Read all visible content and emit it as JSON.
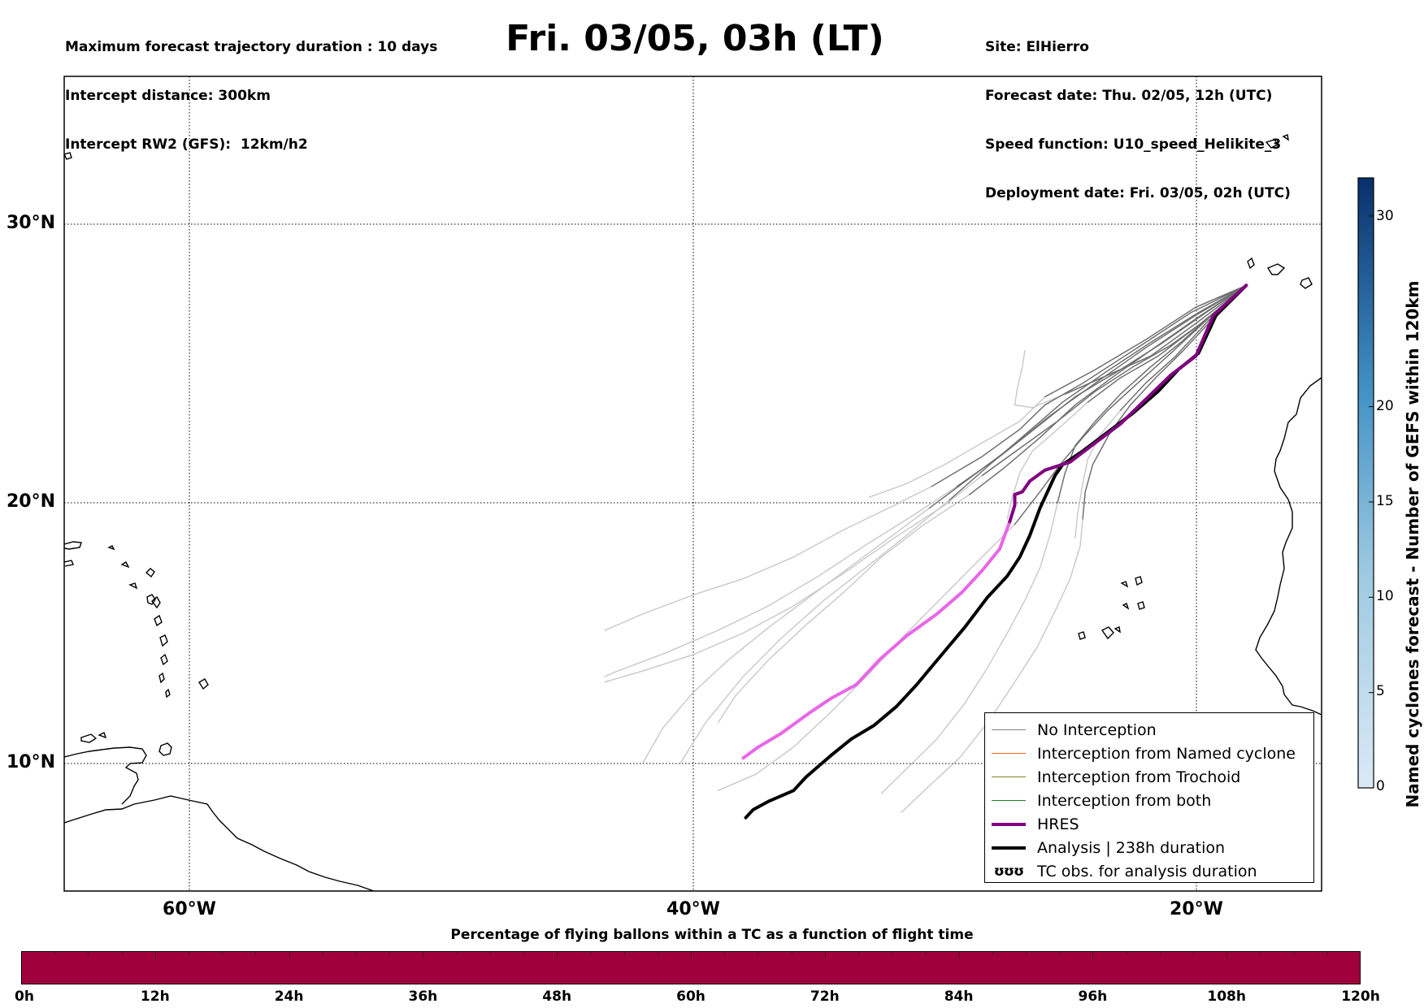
{
  "header": {
    "title": "Fri. 03/05, 03h (LT)",
    "left_lines": [
      "Maximum forecast trajectory duration : 10 days",
      "Intercept distance: 300km",
      "Intercept RW2 (GFS):  12km/h2"
    ],
    "right_lines": [
      "Site: ElHierro",
      "Forecast date: Thu. 02/05, 12h (UTC)",
      "Speed function: U10_speed_Helikite_3",
      "Deployment date: Fri. 03/05, 02h (UTC)"
    ]
  },
  "map": {
    "lat_labels": [
      "30°N",
      "20°N",
      "10°N"
    ],
    "lon_labels": [
      "60°W",
      "40°W",
      "20°W"
    ],
    "extent": {
      "lon_min": -65,
      "lon_max": -15,
      "lat_min": 5.3,
      "lat_max": 35.3
    },
    "gridlines": "dotted"
  },
  "legend": {
    "items": [
      {
        "label": "No Interception",
        "color": "#808080",
        "style": "thin"
      },
      {
        "label": "Interception from Named cyclone",
        "color": "#e8641e",
        "style": "thin"
      },
      {
        "label": "Interception from Trochoid",
        "color": "#808020",
        "style": "thin"
      },
      {
        "label": "Interception from both",
        "color": "#208020",
        "style": "thin"
      },
      {
        "label": "HRES",
        "color": "#800080",
        "style": "thick"
      },
      {
        "label": "Analysis | 238h duration",
        "color": "#000000",
        "style": "thick"
      },
      {
        "label": "TC obs. for analysis duration",
        "icon": "ʊʊʊ",
        "color": "#000000",
        "style": "icon"
      }
    ]
  },
  "colorbar": {
    "label": "Named cyclones forecast - Number of GEFS within 120km",
    "min": 0,
    "max": 32,
    "ticks": [
      "0",
      "5",
      "10",
      "15",
      "20",
      "30"
    ],
    "tick_values": [
      0,
      5,
      10,
      15,
      20,
      30
    ],
    "color_low": "#dbe9f6",
    "color_high": "#08306b"
  },
  "bottom_bar": {
    "title": "Percentage of flying ballons within a TC as a function of flight time",
    "ticks": [
      "0h",
      "12h",
      "24h",
      "36h",
      "48h",
      "60h",
      "72h",
      "84h",
      "96h",
      "108h",
      "120h"
    ],
    "tick_values": [
      0,
      12,
      24,
      36,
      48,
      60,
      72,
      84,
      96,
      108,
      120
    ],
    "fill_color": "#a0003c"
  },
  "tracks": {
    "hres_color": "#800080",
    "hres_late_color": "#e866e8",
    "analysis_color": "#000000",
    "ensemble_near_color": "#6e6e6e",
    "ensemble_far_color": "#c8c8c8",
    "hres": [
      [
        -18.0,
        27.6
      ],
      [
        -19.3,
        26.5
      ],
      [
        -20.0,
        25.0
      ],
      [
        -21.0,
        24.3
      ],
      [
        -22.0,
        23.4
      ],
      [
        -23.0,
        22.5
      ],
      [
        -24.0,
        21.8
      ],
      [
        -25.0,
        21.1
      ],
      [
        -26.0,
        20.8
      ],
      [
        -26.6,
        20.4
      ],
      [
        -26.9,
        20.0
      ],
      [
        -27.2,
        19.9
      ],
      [
        -27.2,
        19.5
      ],
      [
        -27.4,
        18.9
      ],
      [
        -27.8,
        17.9
      ],
      [
        -28.5,
        17.1
      ],
      [
        -29.3,
        16.3
      ],
      [
        -30.3,
        15.5
      ],
      [
        -31.5,
        14.7
      ],
      [
        -32.6,
        13.8
      ],
      [
        -33.5,
        12.9
      ],
      [
        -34.5,
        12.4
      ],
      [
        -35.3,
        11.9
      ],
      [
        -36.5,
        11.1
      ],
      [
        -37.4,
        10.6
      ],
      [
        -38.0,
        10.2
      ]
    ],
    "hres_late_from_index": 13,
    "analysis": [
      [
        -18.0,
        27.6
      ],
      [
        -19.2,
        26.5
      ],
      [
        -19.9,
        25.1
      ],
      [
        -20.7,
        24.5
      ],
      [
        -21.5,
        23.7
      ],
      [
        -22.5,
        22.9
      ],
      [
        -23.5,
        22.2
      ],
      [
        -24.5,
        21.5
      ],
      [
        -25.3,
        21.0
      ],
      [
        -25.6,
        20.6
      ],
      [
        -25.9,
        20.0
      ],
      [
        -26.2,
        19.4
      ],
      [
        -26.6,
        18.4
      ],
      [
        -27.0,
        17.6
      ],
      [
        -27.5,
        16.9
      ],
      [
        -28.3,
        16.1
      ],
      [
        -29.2,
        15.0
      ],
      [
        -30.2,
        13.9
      ],
      [
        -31.1,
        12.9
      ],
      [
        -31.9,
        12.1
      ],
      [
        -32.8,
        11.4
      ],
      [
        -33.7,
        10.9
      ],
      [
        -34.5,
        10.3
      ],
      [
        -35.5,
        9.5
      ],
      [
        -36.0,
        9.0
      ],
      [
        -37.0,
        8.6
      ],
      [
        -37.6,
        8.3
      ],
      [
        -37.9,
        8.0
      ]
    ],
    "ensemble": [
      [
        [
          -18.0,
          27.6
        ],
        [
          -20.0,
          26.8
        ],
        [
          -22.0,
          25.6
        ],
        [
          -24.0,
          24.5
        ],
        [
          -26.0,
          23.5
        ],
        [
          -27.0,
          22.6
        ],
        [
          -28.5,
          21.8
        ],
        [
          -30.0,
          21.0
        ],
        [
          -31.5,
          20.3
        ],
        [
          -33.0,
          19.8
        ]
      ],
      [
        [
          -18.0,
          27.6
        ],
        [
          -20.2,
          26.6
        ],
        [
          -22.5,
          25.2
        ],
        [
          -24.5,
          24.0
        ],
        [
          -26.0,
          23.2
        ],
        [
          -27.0,
          22.3
        ],
        [
          -28.5,
          21.3
        ],
        [
          -30.5,
          20.2
        ],
        [
          -32.0,
          19.5
        ],
        [
          -34.0,
          18.6
        ],
        [
          -36.0,
          17.6
        ],
        [
          -38.0,
          16.8
        ],
        [
          -40.0,
          16.2
        ],
        [
          -42.0,
          15.5
        ],
        [
          -43.5,
          14.9
        ]
      ],
      [
        [
          -18.0,
          27.6
        ],
        [
          -20.0,
          26.2
        ],
        [
          -21.8,
          25.0
        ],
        [
          -23.5,
          24.3
        ],
        [
          -25.2,
          23.6
        ],
        [
          -26.5,
          23.1
        ],
        [
          -27.2,
          23.2
        ],
        [
          -27.1,
          23.8
        ],
        [
          -26.9,
          24.6
        ],
        [
          -26.8,
          25.2
        ]
      ],
      [
        [
          -18.0,
          27.6
        ],
        [
          -19.8,
          26.2
        ],
        [
          -21.5,
          25.0
        ],
        [
          -23.0,
          24.2
        ],
        [
          -24.3,
          23.3
        ],
        [
          -25.5,
          22.3
        ],
        [
          -26.5,
          21.5
        ],
        [
          -27.0,
          20.7
        ],
        [
          -27.3,
          19.8
        ],
        [
          -27.5,
          19.0
        ]
      ],
      [
        [
          -18.0,
          27.6
        ],
        [
          -19.5,
          26.4
        ],
        [
          -21.0,
          25.4
        ],
        [
          -22.5,
          24.6
        ],
        [
          -24.0,
          23.7
        ],
        [
          -25.5,
          22.6
        ],
        [
          -27.0,
          21.6
        ],
        [
          -28.5,
          20.6
        ],
        [
          -30.0,
          19.5
        ],
        [
          -32.0,
          18.3
        ],
        [
          -34.0,
          17.0
        ],
        [
          -36.0,
          15.8
        ],
        [
          -38.0,
          14.8
        ],
        [
          -40.0,
          14.0
        ],
        [
          -42.0,
          13.4
        ],
        [
          -43.5,
          13.0
        ]
      ],
      [
        [
          -18.0,
          27.6
        ],
        [
          -19.6,
          26.3
        ],
        [
          -21.0,
          25.1
        ],
        [
          -22.2,
          24.1
        ],
        [
          -23.5,
          23.0
        ],
        [
          -24.5,
          22.0
        ],
        [
          -25.4,
          21.0
        ],
        [
          -26.2,
          20.0
        ],
        [
          -27.2,
          18.8
        ],
        [
          -28.5,
          17.6
        ],
        [
          -30.0,
          16.2
        ],
        [
          -31.5,
          14.8
        ],
        [
          -33.0,
          13.3
        ],
        [
          -34.5,
          11.9
        ],
        [
          -36.0,
          10.6
        ],
        [
          -37.5,
          9.6
        ],
        [
          -39.0,
          9.0
        ]
      ],
      [
        [
          -18.0,
          27.6
        ],
        [
          -19.4,
          26.5
        ],
        [
          -20.6,
          25.5
        ],
        [
          -21.8,
          24.6
        ],
        [
          -23.0,
          23.6
        ],
        [
          -24.0,
          22.6
        ],
        [
          -24.8,
          21.7
        ],
        [
          -25.2,
          20.7
        ],
        [
          -25.5,
          19.6
        ],
        [
          -25.8,
          18.4
        ],
        [
          -26.2,
          17.2
        ],
        [
          -26.8,
          16.0
        ],
        [
          -27.5,
          14.8
        ],
        [
          -28.3,
          13.5
        ],
        [
          -29.2,
          12.2
        ],
        [
          -30.3,
          10.9
        ],
        [
          -31.5,
          9.8
        ],
        [
          -32.5,
          8.9
        ]
      ],
      [
        [
          -18.0,
          27.6
        ],
        [
          -19.8,
          26.5
        ],
        [
          -21.5,
          25.4
        ],
        [
          -23.2,
          24.3
        ],
        [
          -24.8,
          23.2
        ],
        [
          -26.2,
          22.0
        ],
        [
          -27.6,
          20.9
        ],
        [
          -29.0,
          19.9
        ],
        [
          -30.8,
          18.8
        ],
        [
          -32.5,
          17.6
        ],
        [
          -34.0,
          16.3
        ],
        [
          -35.5,
          15.1
        ],
        [
          -37.0,
          13.8
        ],
        [
          -38.3,
          12.5
        ],
        [
          -39.0,
          11.5
        ]
      ],
      [
        [
          -18.0,
          27.6
        ],
        [
          -19.9,
          26.6
        ],
        [
          -21.8,
          25.5
        ],
        [
          -23.6,
          24.4
        ],
        [
          -25.3,
          23.3
        ],
        [
          -26.8,
          22.1
        ],
        [
          -28.2,
          21.0
        ],
        [
          -29.8,
          19.7
        ],
        [
          -31.5,
          18.4
        ],
        [
          -33.0,
          17.3
        ],
        [
          -34.8,
          16.0
        ],
        [
          -36.5,
          14.6
        ],
        [
          -38.0,
          13.2
        ],
        [
          -39.5,
          11.5
        ],
        [
          -40.5,
          10.0
        ]
      ],
      [
        [
          -18.0,
          27.6
        ],
        [
          -19.6,
          26.6
        ],
        [
          -21.3,
          25.5
        ],
        [
          -23.0,
          24.5
        ],
        [
          -24.8,
          23.5
        ],
        [
          -26.3,
          22.4
        ],
        [
          -27.8,
          21.3
        ],
        [
          -29.5,
          20.2
        ],
        [
          -31.3,
          19.1
        ],
        [
          -33.2,
          18.0
        ],
        [
          -35.0,
          16.9
        ],
        [
          -37.0,
          15.8
        ],
        [
          -39.0,
          14.9
        ],
        [
          -41.0,
          14.1
        ],
        [
          -43.0,
          13.4
        ],
        [
          -43.5,
          13.2
        ]
      ],
      [
        [
          -18.0,
          27.6
        ],
        [
          -19.3,
          26.4
        ],
        [
          -20.5,
          25.2
        ],
        [
          -21.6,
          24.2
        ],
        [
          -22.6,
          23.2
        ],
        [
          -23.4,
          22.2
        ],
        [
          -24.1,
          21.0
        ],
        [
          -24.4,
          20.0
        ],
        [
          -24.5,
          19.0
        ],
        [
          -24.6,
          18.0
        ],
        [
          -25.0,
          16.8
        ],
        [
          -25.6,
          15.6
        ],
        [
          -26.3,
          14.3
        ],
        [
          -27.2,
          13.0
        ],
        [
          -28.2,
          11.6
        ],
        [
          -29.4,
          10.2
        ],
        [
          -30.8,
          9.0
        ],
        [
          -31.7,
          8.2
        ]
      ],
      [
        [
          -18.0,
          27.6
        ],
        [
          -19.5,
          26.3
        ],
        [
          -20.8,
          25.0
        ],
        [
          -22.0,
          24.0
        ],
        [
          -23.0,
          23.0
        ],
        [
          -23.8,
          22.1
        ],
        [
          -24.3,
          21.2
        ],
        [
          -24.5,
          20.3
        ],
        [
          -24.7,
          19.2
        ],
        [
          -24.8,
          18.3
        ]
      ],
      [
        [
          -18.0,
          27.6
        ],
        [
          -20.0,
          26.5
        ],
        [
          -22.0,
          25.3
        ],
        [
          -24.0,
          24.0
        ],
        [
          -25.8,
          22.8
        ],
        [
          -27.4,
          21.6
        ],
        [
          -29.0,
          20.5
        ],
        [
          -30.6,
          19.4
        ],
        [
          -32.2,
          18.3
        ],
        [
          -33.8,
          17.2
        ],
        [
          -35.4,
          16.1
        ],
        [
          -37.0,
          15.0
        ],
        [
          -38.6,
          13.8
        ],
        [
          -40.0,
          12.6
        ],
        [
          -41.2,
          11.3
        ],
        [
          -42.0,
          10.0
        ]
      ]
    ]
  }
}
